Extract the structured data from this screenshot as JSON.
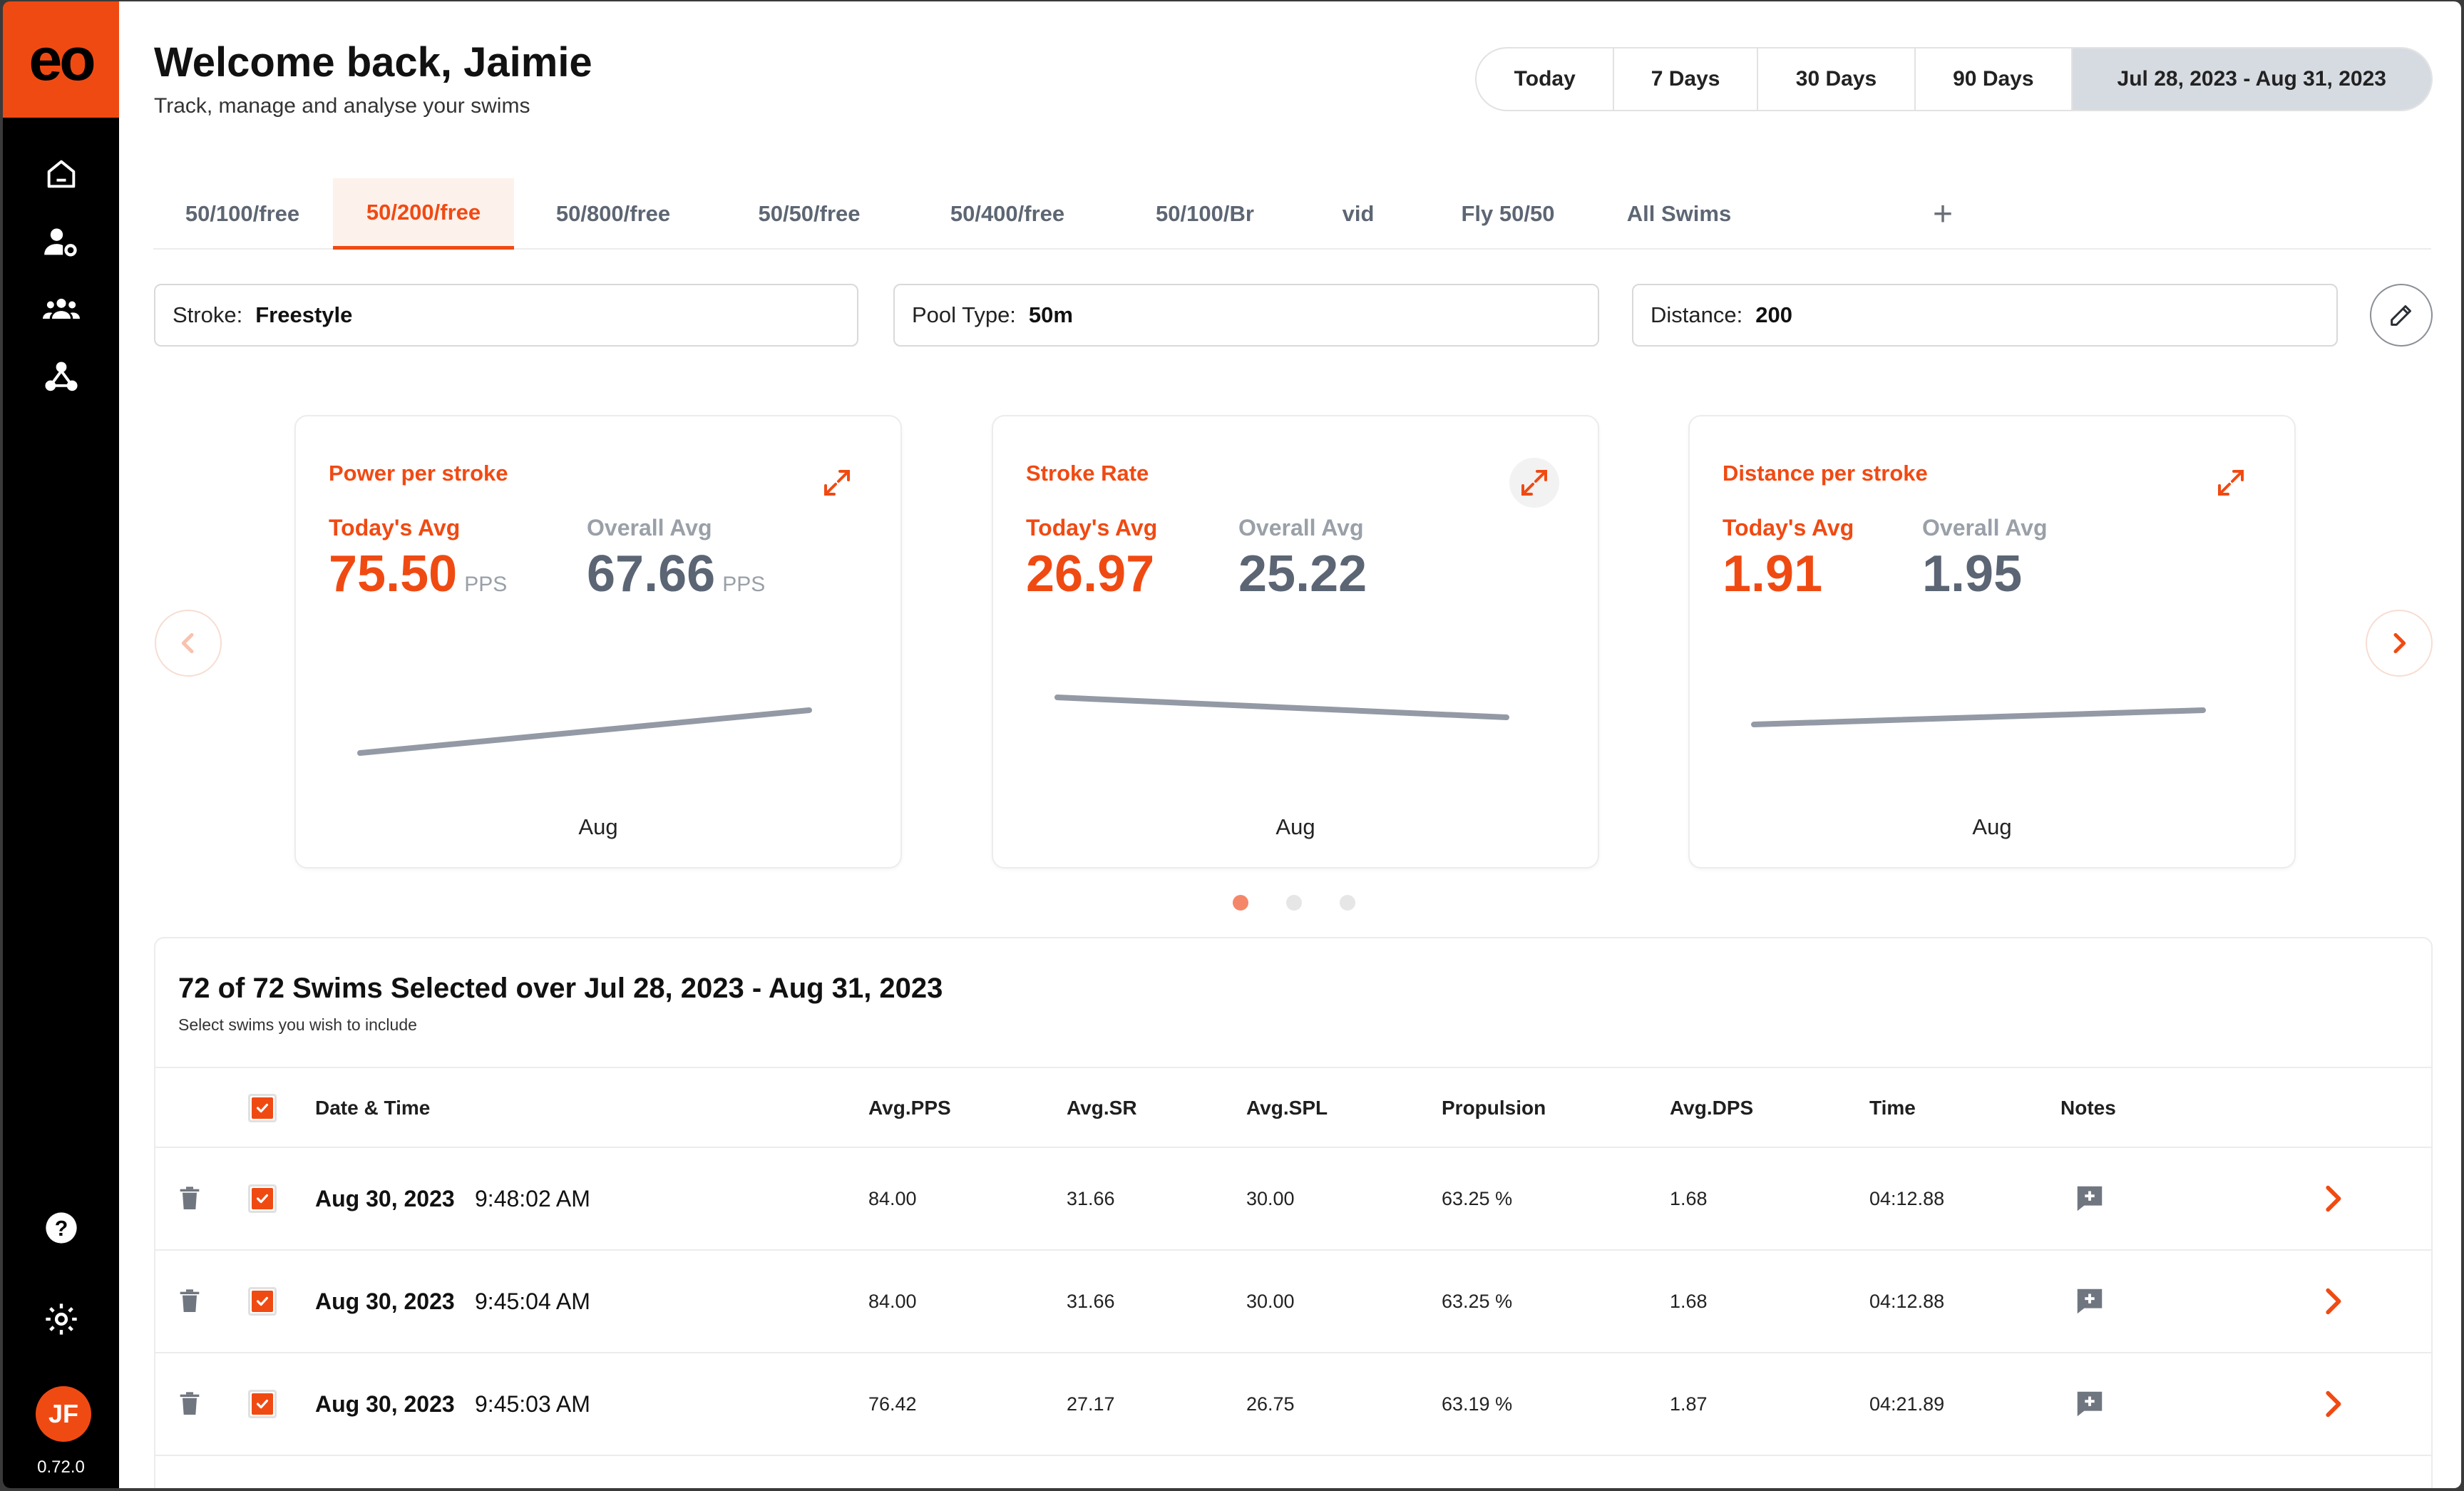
{
  "app": {
    "logo_text": "eo",
    "version": "0.72.0",
    "avatar_initials": "JF",
    "accent": "#f04a13"
  },
  "header": {
    "title": "Welcome back, Jaimie",
    "subtitle": "Track, manage and analyse your swims"
  },
  "date_range": [
    "Today",
    "7 Days",
    "30 Days",
    "90 Days",
    "Jul 28, 2023 - Aug 31, 2023"
  ],
  "date_range_selected": "Jul 28, 2023 - Aug 31, 2023",
  "tabs": [
    "50/100/free",
    "50/200/free",
    "50/800/free",
    "50/50/free",
    "50/400/free",
    "50/100/Br",
    "vid",
    "Fly 50/50",
    "All Swims"
  ],
  "active_tab": "50/200/free",
  "filters": {
    "stroke": {
      "label": "Stroke:",
      "value": "Freestyle"
    },
    "pool": {
      "label": "Pool Type:",
      "value": "50m"
    },
    "distance": {
      "label": "Distance:",
      "value": "200"
    }
  },
  "cards": [
    {
      "title": "Power per stroke",
      "today_label": "Today's Avg",
      "today": "75.50",
      "overall_label": "Overall Avg",
      "overall": "67.66",
      "unit": "PPS",
      "xlabel": "Aug"
    },
    {
      "title": "Stroke Rate",
      "today_label": "Today's Avg",
      "today": "26.97",
      "overall_label": "Overall Avg",
      "overall": "25.22",
      "unit": "",
      "xlabel": "Aug"
    },
    {
      "title": "Distance per stroke",
      "today_label": "Today's Avg",
      "today": "1.91",
      "overall_label": "Overall Avg",
      "overall": "1.95",
      "unit": "",
      "xlabel": "Aug"
    }
  ],
  "pager": {
    "pages": 3,
    "current": 1
  },
  "swims": {
    "title": "72 of 72 Swims Selected over Jul 28, 2023 - Aug 31, 2023",
    "subtitle": "Select swims you wish to include",
    "columns": {
      "date_time": "Date & Time",
      "pps": "Avg.PPS",
      "sr": "Avg.SR",
      "spl": "Avg.SPL",
      "propulsion": "Propulsion",
      "dps": "Avg.DPS",
      "time": "Time",
      "notes": "Notes"
    },
    "rows": [
      {
        "date": "Aug 30, 2023",
        "time": "9:48:02 AM",
        "pps": "84.00",
        "sr": "31.66",
        "spl": "30.00",
        "propulsion": "63.25 %",
        "dps": "1.68",
        "duration": "04:12.88"
      },
      {
        "date": "Aug 30, 2023",
        "time": "9:45:04 AM",
        "pps": "84.00",
        "sr": "31.66",
        "spl": "30.00",
        "propulsion": "63.25 %",
        "dps": "1.68",
        "duration": "04:12.88"
      },
      {
        "date": "Aug 30, 2023",
        "time": "9:45:03 AM",
        "pps": "76.42",
        "sr": "27.17",
        "spl": "26.75",
        "propulsion": "63.19 %",
        "dps": "1.87",
        "duration": "04:21.89"
      }
    ]
  }
}
